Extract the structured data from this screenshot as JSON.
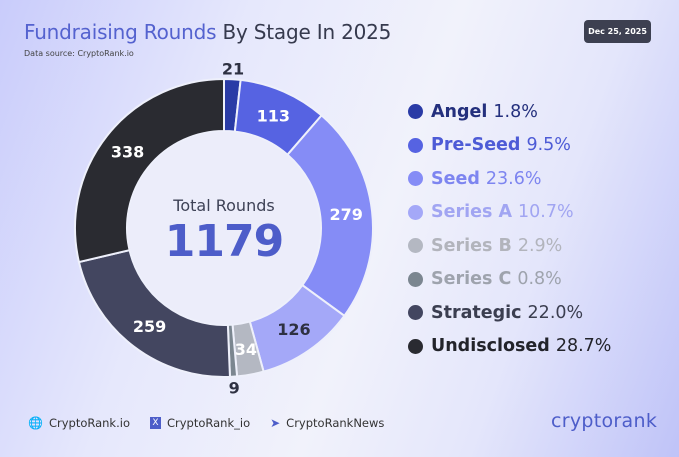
{
  "header": {
    "title_highlight": "Fundraising Rounds",
    "title_rest": "By Stage In 2025",
    "source": "Data source: CryptoRank.io",
    "date": "Dec 25, 2025"
  },
  "chart_data": {
    "type": "pie",
    "subtype": "donut",
    "title": "Fundraising Rounds By Stage In 2025",
    "center_label": "Total Rounds",
    "total": "1179",
    "start_angle": "top, clockwise",
    "legend_position": "right",
    "categories": [
      "Angel",
      "Pre-Seed",
      "Seed",
      "Series A",
      "Series B",
      "Series C",
      "Strategic",
      "Undisclosed"
    ],
    "values": [
      21,
      113,
      279,
      126,
      34,
      9,
      259,
      338
    ],
    "labels": [
      "21",
      "113",
      "279",
      "126",
      "34",
      "9",
      "259",
      "338"
    ],
    "percents": [
      "1.8%",
      "9.5%",
      "23.6%",
      "10.7%",
      "2.9%",
      "0.8%",
      "22.0%",
      "28.7%"
    ],
    "colors": [
      "#2a3ba6",
      "#5663e2",
      "#858cf6",
      "#a4a8f8",
      "#b4b8c2",
      "#7b8690",
      "#434660",
      "#2a2b31"
    ],
    "legend_text_colors": [
      "#24307d",
      "#4d5bd6",
      "#7d85f0",
      "#a1a5f2",
      "#b2b4bc",
      "#9ea3ad",
      "#3b3e50",
      "#22232a"
    ],
    "label_colors": [
      "#2e3142",
      "#ffffff",
      "#ffffff",
      "#2e3142",
      "#ffffff",
      "#2e3142",
      "#ffffff",
      "#ffffff"
    ]
  },
  "footer": {
    "links": [
      {
        "icon": "globe-icon",
        "label": "CryptoRank.io"
      },
      {
        "icon": "x-icon",
        "label": "CryptoRank_io"
      },
      {
        "icon": "telegram-icon",
        "label": "CryptoRankNews"
      }
    ],
    "brand": "cryptorank"
  }
}
